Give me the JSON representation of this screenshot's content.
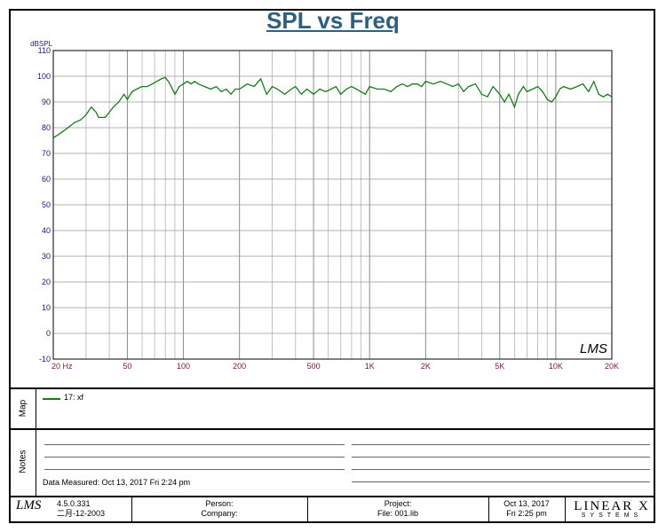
{
  "title": "SPL vs Freq",
  "chart_data": {
    "type": "line",
    "title": "SPL vs Freq",
    "ylabel": "dBSPL",
    "xlabel": "",
    "x_scale": "log",
    "xlim": [
      20,
      20000
    ],
    "ylim": [
      -10,
      110
    ],
    "grid": true,
    "yticks": [
      -10,
      0,
      10,
      20,
      30,
      40,
      50,
      60,
      70,
      80,
      90,
      100,
      110
    ],
    "xtick_labels": [
      {
        "value": 20,
        "label": "20  Hz"
      },
      {
        "value": 50,
        "label": "50"
      },
      {
        "value": 100,
        "label": "100"
      },
      {
        "value": 200,
        "label": "200"
      },
      {
        "value": 500,
        "label": "500"
      },
      {
        "value": 1000,
        "label": "1K"
      },
      {
        "value": 2000,
        "label": "2K"
      },
      {
        "value": 5000,
        "label": "5K"
      },
      {
        "value": 10000,
        "label": "10K"
      },
      {
        "value": 20000,
        "label": "20K"
      }
    ],
    "series": [
      {
        "name": "17: xf",
        "color": "#1a7a1a",
        "x": [
          20,
          22,
          24,
          26,
          28,
          30,
          32,
          34,
          35,
          36,
          38,
          40,
          42,
          45,
          48,
          50,
          53,
          56,
          60,
          64,
          68,
          72,
          76,
          80,
          83,
          86,
          90,
          95,
          100,
          105,
          110,
          115,
          120,
          130,
          140,
          150,
          160,
          170,
          180,
          190,
          200,
          210,
          220,
          240,
          260,
          280,
          300,
          320,
          350,
          380,
          400,
          430,
          460,
          500,
          540,
          580,
          620,
          660,
          700,
          750,
          800,
          850,
          900,
          950,
          1000,
          1100,
          1200,
          1300,
          1400,
          1500,
          1600,
          1700,
          1800,
          1900,
          2000,
          2200,
          2400,
          2600,
          2800,
          3000,
          3200,
          3400,
          3700,
          4000,
          4300,
          4600,
          5000,
          5300,
          5600,
          6000,
          6300,
          6700,
          7000,
          7500,
          8000,
          8500,
          9000,
          9500,
          10000,
          10500,
          11000,
          12000,
          13000,
          14000,
          15000,
          16000,
          17000,
          18000,
          19000,
          20000
        ],
        "y": [
          76,
          78,
          80,
          82,
          83,
          85,
          88,
          86,
          84,
          84,
          84,
          86,
          88,
          90,
          93,
          91,
          94,
          95,
          96,
          96,
          97,
          98,
          99,
          99.5,
          98,
          96,
          93,
          96,
          97,
          98,
          97,
          98,
          97,
          96,
          95,
          96,
          94,
          95,
          93,
          95,
          95,
          96,
          97,
          96,
          99,
          93,
          96,
          95,
          93,
          95,
          96,
          93,
          95,
          93,
          95,
          94,
          95,
          96,
          93,
          95,
          96,
          95,
          94,
          93,
          96,
          95,
          95,
          94,
          96,
          97,
          96,
          97,
          97,
          96,
          98,
          97,
          98,
          97,
          96,
          97,
          94,
          96,
          97,
          93,
          92,
          96,
          93,
          90,
          93,
          88,
          93,
          96,
          94,
          95,
          96,
          94,
          91,
          90,
          92,
          95,
          96,
          95,
          96,
          97,
          94,
          98,
          93,
          92,
          93,
          92
        ]
      }
    ],
    "watermark": "LMS"
  },
  "map": {
    "label": "Map",
    "legend_entry": "17: xf"
  },
  "notes": {
    "label": "Notes",
    "data_measured": "Data Measured: Oct 13, 2017  Fri  2:24 pm"
  },
  "footer": {
    "logo": "LMS",
    "version": "4.5.0.331",
    "version_date": "二月-12-2003",
    "person_label": "Person:",
    "company_label": "Company:",
    "project_label": "Project:",
    "file_label": "File: 001.lib",
    "date": "Oct 13, 2017",
    "time": "Fri  2:25 pm",
    "brand_big": "LINEAR X",
    "brand_small": "SYSTEMS"
  },
  "colors": {
    "title": "#2f5f7f",
    "series": "#1a7a1a",
    "tick_y": "#1a1a7a",
    "tick_x": "#7a1a3a"
  }
}
